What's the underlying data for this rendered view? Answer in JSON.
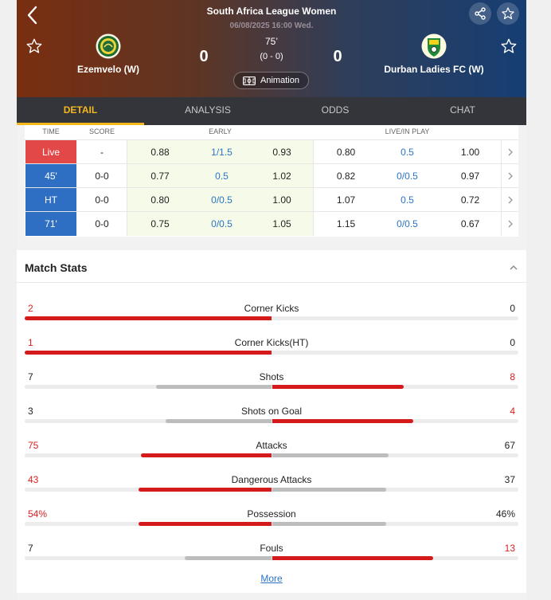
{
  "header": {
    "league": "South Africa League Women",
    "datetime": "06/08/2025 16:00 Wed.",
    "minute": "75’",
    "ht_score": "(0 - 0)",
    "home_team": "Ezemvelo (W)",
    "away_team": "Durban Ladies FC (W)",
    "home_score": "0",
    "away_score": "0",
    "animation_label": "Animation"
  },
  "tabs": [
    {
      "label": "DETAIL"
    },
    {
      "label": "ANALYSIS"
    },
    {
      "label": "ODDS"
    },
    {
      "label": "CHAT"
    }
  ],
  "odds": {
    "headers": {
      "time": "TIME",
      "score": "SCORE",
      "early": "EARLY",
      "live": "LIVE/IN PLAY"
    },
    "rows": [
      {
        "time": "Live",
        "score": "-",
        "e1": "0.88",
        "e2": "1/1.5",
        "e3": "0.93",
        "l1": "0.80",
        "l2": "0.5",
        "l3": "1.00",
        "time_color": "#e24848"
      },
      {
        "time": "45'",
        "score": "0-0",
        "e1": "0.77",
        "e2": "0.5",
        "e3": "1.02",
        "l1": "0.82",
        "l2": "0/0.5",
        "l3": "0.97",
        "time_color": "#2f6fc3"
      },
      {
        "time": "HT",
        "score": "0-0",
        "e1": "0.80",
        "e2": "0/0.5",
        "e3": "1.00",
        "l1": "1.07",
        "l2": "0.5",
        "l3": "0.72",
        "time_color": "#2f6fc3"
      },
      {
        "time": "71'",
        "score": "0-0",
        "e1": "0.75",
        "e2": "0/0.5",
        "e3": "1.05",
        "l1": "1.15",
        "l2": "0/0.5",
        "l3": "0.67",
        "time_color": "#2f6fc3"
      }
    ]
  },
  "stats": {
    "title": "Match Stats",
    "more_label": "More",
    "colors": {
      "lead": "#d41a1a",
      "trail": "#bdbdbd"
    },
    "rows": [
      {
        "name": "Corner Kicks",
        "home": "2",
        "away": "0",
        "home_val": 2,
        "away_val": 0
      },
      {
        "name": "Corner Kicks(HT)",
        "home": "1",
        "away": "0",
        "home_val": 1,
        "away_val": 0
      },
      {
        "name": "Shots",
        "home": "7",
        "away": "8",
        "home_val": 7,
        "away_val": 8
      },
      {
        "name": "Shots on Goal",
        "home": "3",
        "away": "4",
        "home_val": 3,
        "away_val": 4
      },
      {
        "name": "Attacks",
        "home": "75",
        "away": "67",
        "home_val": 75,
        "away_val": 67
      },
      {
        "name": "Dangerous Attacks",
        "home": "43",
        "away": "37",
        "home_val": 43,
        "away_val": 37
      },
      {
        "name": "Possession",
        "home": "54%",
        "away": "46%",
        "home_val": 54,
        "away_val": 46
      },
      {
        "name": "Fouls",
        "home": "7",
        "away": "13",
        "home_val": 7,
        "away_val": 13
      }
    ]
  }
}
